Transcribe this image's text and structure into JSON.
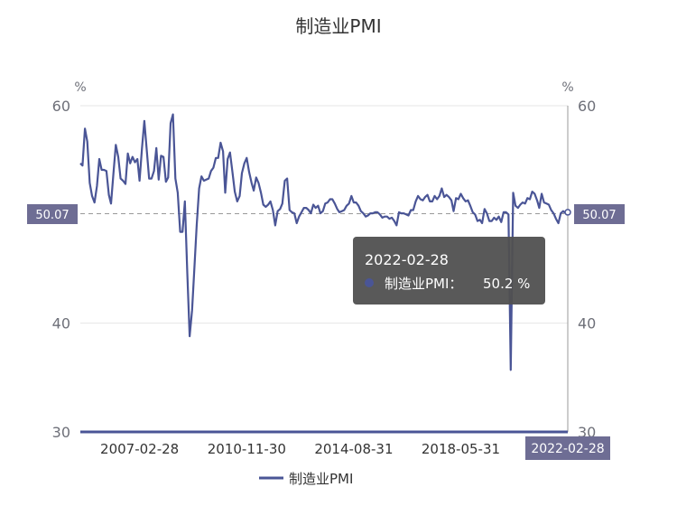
{
  "chart_data": {
    "type": "line",
    "title": "制造业PMI",
    "y_unit_left": "%",
    "y_unit_right": "%",
    "ylim": [
      30,
      60
    ],
    "y_ticks": [
      30,
      40,
      60
    ],
    "x_tick_labels": [
      "2007-02-28",
      "2010-11-30",
      "2014-08-31",
      "2018-05-31"
    ],
    "x_range": [
      "2005-01-31",
      "2022-02-28"
    ],
    "average_line": 50.07,
    "average_label": "50.07",
    "axis_pointer_label": "2022-02-28",
    "series": [
      {
        "name": "制造业PMI",
        "color": "#4a5596",
        "x": [
          "2005-01-31",
          "2005-02-28",
          "2005-03-31",
          "2005-04-30",
          "2005-05-31",
          "2005-06-30",
          "2005-07-31",
          "2005-08-31",
          "2005-09-30",
          "2005-10-31",
          "2005-11-30",
          "2005-12-31",
          "2006-01-31",
          "2006-02-28",
          "2006-03-31",
          "2006-04-30",
          "2006-05-31",
          "2006-06-30",
          "2006-07-31",
          "2006-08-31",
          "2006-09-30",
          "2006-10-31",
          "2006-11-30",
          "2006-12-31",
          "2007-01-31",
          "2007-02-28",
          "2007-03-31",
          "2007-04-30",
          "2007-05-31",
          "2007-06-30",
          "2007-07-31",
          "2007-08-31",
          "2007-09-30",
          "2007-10-31",
          "2007-11-30",
          "2007-12-31",
          "2008-01-31",
          "2008-02-29",
          "2008-03-31",
          "2008-04-30",
          "2008-05-31",
          "2008-06-30",
          "2008-07-31",
          "2008-08-31",
          "2008-09-30",
          "2008-10-31",
          "2008-11-30",
          "2008-12-31",
          "2009-01-31",
          "2009-02-28",
          "2009-03-31",
          "2009-04-30",
          "2009-05-31",
          "2009-06-30",
          "2009-07-31",
          "2009-08-31",
          "2009-09-30",
          "2009-10-31",
          "2009-11-30",
          "2009-12-31",
          "2010-01-31",
          "2010-02-28",
          "2010-03-31",
          "2010-04-30",
          "2010-05-31",
          "2010-06-30",
          "2010-07-31",
          "2010-08-31",
          "2010-09-30",
          "2010-10-31",
          "2010-11-30",
          "2010-12-31",
          "2011-01-31",
          "2011-02-28",
          "2011-03-31",
          "2011-04-30",
          "2011-05-31",
          "2011-06-30",
          "2011-07-31",
          "2011-08-31",
          "2011-09-30",
          "2011-10-31",
          "2011-11-30",
          "2011-12-31",
          "2012-01-31",
          "2012-02-29",
          "2012-03-31",
          "2012-04-30",
          "2012-05-31",
          "2012-06-30",
          "2012-07-31",
          "2012-08-31",
          "2012-09-30",
          "2012-10-31",
          "2012-11-30",
          "2012-12-31",
          "2013-01-31",
          "2013-02-28",
          "2013-03-31",
          "2013-04-30",
          "2013-05-31",
          "2013-06-30",
          "2013-07-31",
          "2013-08-31",
          "2013-09-30",
          "2013-10-31",
          "2013-11-30",
          "2013-12-31",
          "2014-01-31",
          "2014-02-28",
          "2014-03-31",
          "2014-04-30",
          "2014-05-31",
          "2014-06-30",
          "2014-07-31",
          "2014-08-31",
          "2014-09-30",
          "2014-10-31",
          "2014-11-30",
          "2014-12-31",
          "2015-01-31",
          "2015-02-28",
          "2015-03-31",
          "2015-04-30",
          "2015-05-31",
          "2015-06-30",
          "2015-07-31",
          "2015-08-31",
          "2015-09-30",
          "2015-10-31",
          "2015-11-30",
          "2015-12-31",
          "2016-01-31",
          "2016-02-29",
          "2016-03-31",
          "2016-04-30",
          "2016-05-31",
          "2016-06-30",
          "2016-07-31",
          "2016-08-31",
          "2016-09-30",
          "2016-10-31",
          "2016-11-30",
          "2016-12-31",
          "2017-01-31",
          "2017-02-28",
          "2017-03-31",
          "2017-04-30",
          "2017-05-31",
          "2017-06-30",
          "2017-07-31",
          "2017-08-31",
          "2017-09-30",
          "2017-10-31",
          "2017-11-30",
          "2017-12-31",
          "2018-01-31",
          "2018-02-28",
          "2018-03-31",
          "2018-04-30",
          "2018-05-31",
          "2018-06-30",
          "2018-07-31",
          "2018-08-31",
          "2018-09-30",
          "2018-10-31",
          "2018-11-30",
          "2018-12-31",
          "2019-01-31",
          "2019-02-28",
          "2019-03-31",
          "2019-04-30",
          "2019-05-31",
          "2019-06-30",
          "2019-07-31",
          "2019-08-31",
          "2019-09-30",
          "2019-10-31",
          "2019-11-30",
          "2019-12-31",
          "2020-01-31",
          "2020-02-29",
          "2020-03-31",
          "2020-04-30",
          "2020-05-31",
          "2020-06-30",
          "2020-07-31",
          "2020-08-31",
          "2020-09-30",
          "2020-10-31",
          "2020-11-30",
          "2020-12-31",
          "2021-01-31",
          "2021-02-28",
          "2021-03-31",
          "2021-04-30",
          "2021-05-31",
          "2021-06-30",
          "2021-07-31",
          "2021-08-31",
          "2021-09-30",
          "2021-10-31",
          "2021-11-30",
          "2021-12-31",
          "2022-01-31",
          "2022-02-28"
        ],
        "values": [
          54.7,
          54.5,
          57.9,
          56.7,
          52.9,
          51.7,
          51.1,
          52.6,
          55.1,
          54.1,
          54.1,
          54.0,
          51.8,
          51.0,
          53.8,
          56.4,
          55.3,
          53.3,
          53.1,
          52.8,
          55.6,
          54.7,
          55.3,
          54.8,
          55.1,
          53.1,
          56.1,
          58.6,
          55.9,
          53.3,
          53.3,
          54.0,
          56.1,
          53.2,
          55.4,
          55.3,
          53.0,
          53.4,
          58.4,
          59.2,
          53.3,
          52.0,
          48.4,
          48.4,
          51.2,
          44.6,
          38.8,
          41.2,
          45.3,
          49.0,
          52.4,
          53.5,
          53.1,
          53.2,
          53.3,
          54.0,
          54.3,
          55.2,
          55.2,
          56.6,
          55.8,
          52.0,
          55.1,
          55.7,
          53.9,
          52.1,
          51.2,
          51.7,
          53.8,
          54.7,
          55.2,
          53.9,
          52.9,
          52.2,
          53.4,
          52.9,
          52.0,
          50.9,
          50.7,
          50.9,
          51.2,
          50.4,
          49.0,
          50.3,
          50.5,
          51.0,
          53.1,
          53.3,
          50.4,
          50.2,
          50.1,
          49.2,
          49.8,
          50.2,
          50.6,
          50.6,
          50.4,
          50.1,
          50.9,
          50.6,
          50.8,
          50.1,
          50.3,
          51.0,
          51.1,
          51.4,
          51.4,
          51.0,
          50.5,
          50.2,
          50.3,
          50.4,
          50.8,
          51.0,
          51.7,
          51.1,
          51.1,
          50.8,
          50.3,
          50.1,
          49.8,
          49.9,
          50.1,
          50.1,
          50.2,
          50.2,
          50.0,
          49.7,
          49.8,
          49.8,
          49.6,
          49.7,
          49.4,
          49.0,
          50.2,
          50.1,
          50.1,
          50.0,
          49.9,
          50.4,
          50.4,
          51.2,
          51.7,
          51.4,
          51.3,
          51.6,
          51.8,
          51.2,
          51.2,
          51.7,
          51.4,
          51.7,
          52.4,
          51.6,
          51.8,
          51.6,
          51.3,
          50.3,
          51.5,
          51.4,
          51.9,
          51.5,
          51.2,
          51.3,
          50.8,
          50.2,
          50.0,
          49.4,
          49.5,
          49.2,
          50.5,
          50.1,
          49.4,
          49.4,
          49.7,
          49.5,
          49.8,
          49.3,
          50.2,
          50.2,
          50.0,
          35.7,
          52.0,
          50.8,
          50.6,
          50.9,
          51.1,
          51.0,
          51.5,
          51.4,
          52.1,
          51.9,
          51.3,
          50.6,
          51.9,
          51.1,
          51.0,
          50.9,
          50.4,
          50.1,
          49.6,
          49.2,
          50.1,
          50.3,
          50.1,
          50.2
        ]
      }
    ],
    "tooltip": {
      "date": "2022-02-28",
      "series_label": "制造业PMI：",
      "value_text": "50.2 %"
    },
    "legend_position": "bottom-center",
    "grid": true
  }
}
